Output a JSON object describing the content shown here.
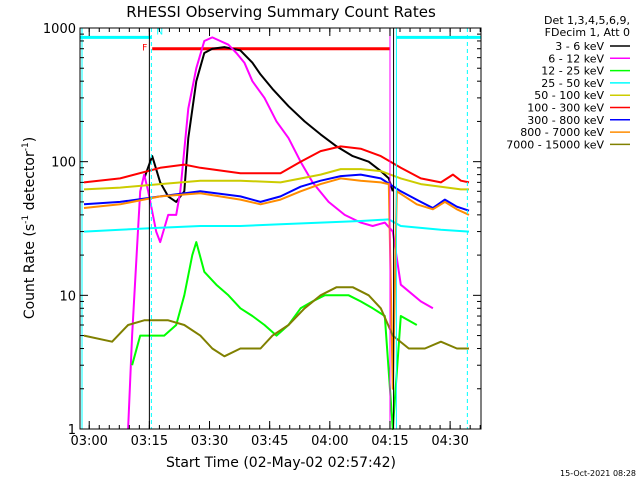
{
  "chart_data": {
    "type": "line",
    "title": "RHESSI Observing Summary Count Rates",
    "xlabel": "Start Time (02-May-02 02:57:42)",
    "ylabel_main": "Count Rate (s",
    "ylabel_sup1": "-1",
    "ylabel_mid": " detector",
    "ylabel_sup2": "-1",
    "ylabel_end": ")",
    "yscale": "log",
    "xlim_minutes": [
      0,
      100
    ],
    "ylim": [
      1,
      1000
    ],
    "x_ticks": [
      {
        "label": "03:00",
        "minutes": 2.3
      },
      {
        "label": "03:15",
        "minutes": 17.3
      },
      {
        "label": "03:30",
        "minutes": 32.3
      },
      {
        "label": "03:45",
        "minutes": 47.3
      },
      {
        "label": "04:00",
        "minutes": 62.3
      },
      {
        "label": "04:15",
        "minutes": 77.3
      },
      {
        "label": "04:30",
        "minutes": 92.3
      }
    ],
    "y_ticks": [
      {
        "label": "1",
        "value": 1
      },
      {
        "label": "10",
        "value": 10
      },
      {
        "label": "100",
        "value": 100
      },
      {
        "label": "1000",
        "value": 1000
      }
    ],
    "legend_header": [
      "Det 1,3,4,5,6,9,",
      "FDecim 1, Att 0"
    ],
    "legend_position": "right",
    "series": [
      {
        "name": "3 - 6 keV",
        "color": "#000000",
        "points": [
          [
            16,
            75
          ],
          [
            18,
            110
          ],
          [
            20,
            70
          ],
          [
            22,
            55
          ],
          [
            24,
            50
          ],
          [
            26,
            60
          ],
          [
            27,
            150
          ],
          [
            29,
            400
          ],
          [
            31,
            650
          ],
          [
            33,
            700
          ],
          [
            36,
            720
          ],
          [
            38,
            700
          ],
          [
            40,
            680
          ],
          [
            43,
            550
          ],
          [
            45,
            450
          ],
          [
            48,
            350
          ],
          [
            52,
            260
          ],
          [
            56,
            200
          ],
          [
            60,
            160
          ],
          [
            64,
            130
          ],
          [
            68,
            110
          ],
          [
            72,
            100
          ],
          [
            75,
            85
          ],
          [
            77,
            75
          ],
          [
            78,
            60
          ]
        ]
      },
      {
        "name": "6 - 12 keV",
        "color": "#ff00ff",
        "points": [
          [
            12,
            1
          ],
          [
            13,
            5
          ],
          [
            15,
            60
          ],
          [
            16,
            80
          ],
          [
            17,
            60
          ],
          [
            19,
            30
          ],
          [
            20,
            25
          ],
          [
            22,
            40
          ],
          [
            24,
            40
          ],
          [
            25,
            60
          ],
          [
            27,
            250
          ],
          [
            29,
            500
          ],
          [
            31,
            800
          ],
          [
            33,
            850
          ],
          [
            35,
            800
          ],
          [
            37,
            750
          ],
          [
            39,
            650
          ],
          [
            41,
            550
          ],
          [
            43,
            400
          ],
          [
            46,
            300
          ],
          [
            49,
            200
          ],
          [
            52,
            150
          ],
          [
            55,
            100
          ],
          [
            58,
            70
          ],
          [
            62,
            50
          ],
          [
            66,
            40
          ],
          [
            70,
            35
          ],
          [
            73,
            33
          ],
          [
            76,
            35
          ],
          [
            78,
            30
          ],
          [
            80,
            12
          ],
          [
            85,
            9
          ],
          [
            88,
            8
          ]
        ]
      },
      {
        "name": "12 - 25 keV",
        "color": "#00ff00",
        "points": [
          [
            13,
            3
          ],
          [
            15,
            5
          ],
          [
            18,
            5
          ],
          [
            21,
            5
          ],
          [
            24,
            6
          ],
          [
            26,
            10
          ],
          [
            28,
            20
          ],
          [
            29,
            25
          ],
          [
            31,
            15
          ],
          [
            34,
            12
          ],
          [
            37,
            10
          ],
          [
            40,
            8
          ],
          [
            43,
            7
          ],
          [
            46,
            6
          ],
          [
            49,
            5
          ],
          [
            52,
            6
          ],
          [
            55,
            8
          ],
          [
            58,
            9
          ],
          [
            61,
            10
          ],
          [
            64,
            10
          ],
          [
            67,
            10
          ],
          [
            70,
            9
          ],
          [
            73,
            8
          ],
          [
            76,
            7
          ],
          [
            78,
            1
          ],
          [
            80,
            7
          ],
          [
            84,
            6
          ]
        ]
      },
      {
        "name": "25 - 50 keV",
        "color": "#00ffff",
        "points": [
          [
            1,
            30
          ],
          [
            10,
            31
          ],
          [
            20,
            32
          ],
          [
            30,
            33
          ],
          [
            40,
            33
          ],
          [
            50,
            34
          ],
          [
            60,
            35
          ],
          [
            70,
            36
          ],
          [
            77,
            37
          ],
          [
            80,
            33
          ],
          [
            90,
            31
          ],
          [
            97,
            30
          ]
        ]
      },
      {
        "name": "50 - 100 keV",
        "color": "#cccc00",
        "points": [
          [
            1,
            62
          ],
          [
            10,
            64
          ],
          [
            20,
            68
          ],
          [
            30,
            72
          ],
          [
            40,
            72
          ],
          [
            50,
            70
          ],
          [
            60,
            80
          ],
          [
            65,
            88
          ],
          [
            70,
            88
          ],
          [
            75,
            85
          ],
          [
            80,
            75
          ],
          [
            85,
            68
          ],
          [
            90,
            65
          ],
          [
            95,
            62
          ],
          [
            97,
            62
          ]
        ]
      },
      {
        "name": "100 - 300 keV",
        "color": "#ff0000",
        "points": [
          [
            1,
            70
          ],
          [
            10,
            75
          ],
          [
            20,
            90
          ],
          [
            26,
            95
          ],
          [
            30,
            90
          ],
          [
            40,
            82
          ],
          [
            50,
            82
          ],
          [
            55,
            100
          ],
          [
            60,
            120
          ],
          [
            65,
            130
          ],
          [
            70,
            125
          ],
          [
            75,
            110
          ],
          [
            80,
            90
          ],
          [
            85,
            75
          ],
          [
            90,
            70
          ],
          [
            93,
            80
          ],
          [
            95,
            72
          ],
          [
            97,
            70
          ]
        ]
      },
      {
        "name": "300 - 800 keV",
        "color": "#0000ff",
        "points": [
          [
            1,
            48
          ],
          [
            10,
            50
          ],
          [
            20,
            55
          ],
          [
            30,
            60
          ],
          [
            40,
            55
          ],
          [
            45,
            50
          ],
          [
            50,
            55
          ],
          [
            55,
            65
          ],
          [
            60,
            72
          ],
          [
            65,
            78
          ],
          [
            70,
            80
          ],
          [
            75,
            75
          ],
          [
            80,
            60
          ],
          [
            85,
            50
          ],
          [
            88,
            45
          ],
          [
            91,
            52
          ],
          [
            94,
            46
          ],
          [
            97,
            43
          ]
        ]
      },
      {
        "name": "800 - 7000 keV",
        "color": "#ff8c00",
        "points": [
          [
            1,
            45
          ],
          [
            10,
            48
          ],
          [
            20,
            55
          ],
          [
            30,
            58
          ],
          [
            40,
            52
          ],
          [
            45,
            48
          ],
          [
            50,
            52
          ],
          [
            55,
            60
          ],
          [
            60,
            68
          ],
          [
            65,
            75
          ],
          [
            70,
            72
          ],
          [
            75,
            70
          ],
          [
            77,
            68
          ],
          [
            78,
            2
          ],
          [
            79,
            60
          ],
          [
            84,
            48
          ],
          [
            88,
            44
          ],
          [
            91,
            50
          ],
          [
            94,
            44
          ],
          [
            97,
            40
          ]
        ]
      },
      {
        "name": "7000 - 15000 keV",
        "color": "#808000",
        "points": [
          [
            1,
            5
          ],
          [
            8,
            4.5
          ],
          [
            12,
            6
          ],
          [
            16,
            6.5
          ],
          [
            22,
            6.5
          ],
          [
            26,
            6
          ],
          [
            30,
            5
          ],
          [
            33,
            4
          ],
          [
            36,
            3.5
          ],
          [
            40,
            4
          ],
          [
            45,
            4
          ],
          [
            48,
            5
          ],
          [
            52,
            6
          ],
          [
            56,
            8
          ],
          [
            60,
            10
          ],
          [
            64,
            11.5
          ],
          [
            68,
            11.5
          ],
          [
            72,
            10
          ],
          [
            75,
            8
          ],
          [
            78,
            5
          ],
          [
            82,
            4
          ],
          [
            86,
            4
          ],
          [
            90,
            4.5
          ],
          [
            94,
            4
          ],
          [
            97,
            4
          ]
        ]
      }
    ],
    "annotations": [
      {
        "label": "N",
        "color": "#00ffff",
        "x_start": 0,
        "x_end": 17.8,
        "value": 850
      },
      {
        "label": "N",
        "color": "#00ffff",
        "x_start": 78.9,
        "x_end": 100,
        "value": 850
      },
      {
        "label": "F",
        "color": "#ff0000",
        "x_start": 18,
        "x_end": 77.3,
        "value": 700
      }
    ],
    "vertical_markers": [
      {
        "color": "#00ffff",
        "minutes": 17.8,
        "style": "dashed"
      },
      {
        "color": "#000000",
        "minutes": 17.3,
        "style": "solid"
      },
      {
        "color": "#00ffff",
        "minutes": 78.9,
        "style": "solid"
      },
      {
        "color": "#ff00ff",
        "minutes": 77.3,
        "style": "solid"
      },
      {
        "color": "#000000",
        "minutes": 78.2,
        "style": "solid"
      },
      {
        "color": "#00ffff",
        "minutes": 96.6,
        "style": "dashed"
      },
      {
        "color": "#00ffff",
        "minutes": 0.5,
        "style": "solid"
      }
    ]
  },
  "footer_timestamp": "15-Oct-2021 08:28"
}
